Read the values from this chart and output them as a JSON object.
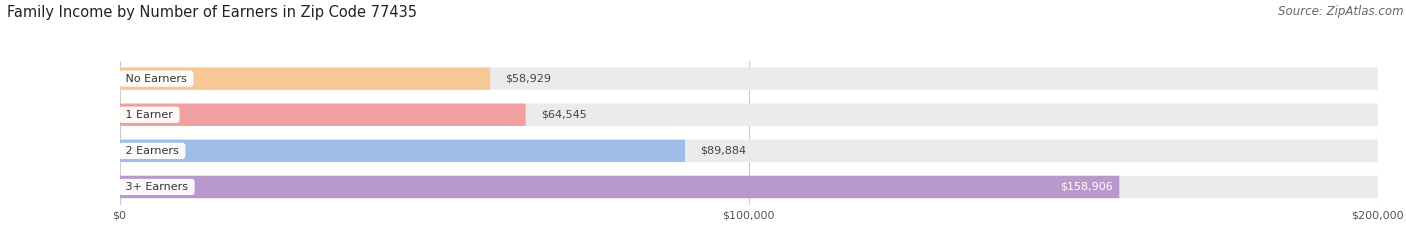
{
  "title": "Family Income by Number of Earners in Zip Code 77435",
  "source": "Source: ZipAtlas.com",
  "categories": [
    "No Earners",
    "1 Earner",
    "2 Earners",
    "3+ Earners"
  ],
  "values": [
    58929,
    64545,
    89884,
    158906
  ],
  "bar_colors": [
    "#f7c896",
    "#f0a0a0",
    "#a0bce8",
    "#b899cc"
  ],
  "value_labels": [
    "$58,929",
    "$64,545",
    "$89,884",
    "$158,906"
  ],
  "value_label_inside": [
    false,
    false,
    false,
    true
  ],
  "xlim": [
    0,
    200000
  ],
  "xticks": [
    0,
    100000,
    200000
  ],
  "xtick_labels": [
    "$0",
    "$100,000",
    "$200,000"
  ],
  "background_color": "#ffffff",
  "bar_background_color": "#ebebeb",
  "title_fontsize": 10.5,
  "source_fontsize": 8.5,
  "tick_fontsize": 8,
  "label_fontsize": 8,
  "value_fontsize": 8
}
